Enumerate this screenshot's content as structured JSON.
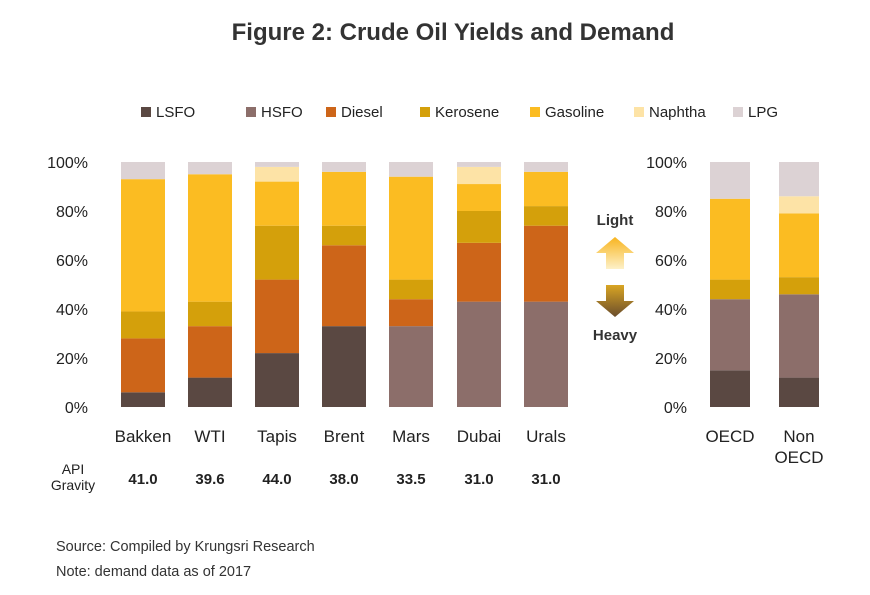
{
  "title": "Figure 2: Crude Oil Yields and Demand",
  "legend": [
    {
      "name": "LSFO",
      "color": "#5a4842"
    },
    {
      "name": "HSFO",
      "color": "#8c6e6a"
    },
    {
      "name": "Diesel",
      "color": "#cd6519"
    },
    {
      "name": "Kerosene",
      "color": "#d4a00b"
    },
    {
      "name": "Gasoline",
      "color": "#fbbc22"
    },
    {
      "name": "Naphtha",
      "color": "#fde3a6"
    },
    {
      "name": "LPG",
      "color": "#dcd2d4"
    }
  ],
  "chart_data": [
    {
      "type": "bar",
      "stacked": true,
      "categories": [
        "Bakken",
        "WTI",
        "Tapis",
        "Brent",
        "Mars",
        "Dubai",
        "Urals"
      ],
      "series": [
        {
          "name": "LSFO",
          "values": [
            6,
            12,
            22,
            33,
            0,
            0,
            0
          ]
        },
        {
          "name": "HSFO",
          "values": [
            0,
            0,
            0,
            0,
            33,
            43,
            43
          ]
        },
        {
          "name": "Diesel",
          "values": [
            22,
            21,
            30,
            33,
            11,
            24,
            31
          ]
        },
        {
          "name": "Kerosene",
          "values": [
            11,
            10,
            22,
            8,
            8,
            13,
            8
          ]
        },
        {
          "name": "Gasoline",
          "values": [
            54,
            52,
            18,
            22,
            42,
            11,
            14
          ]
        },
        {
          "name": "Naphtha",
          "values": [
            0,
            0,
            6,
            0,
            0,
            7,
            0
          ]
        },
        {
          "name": "LPG",
          "values": [
            7,
            5,
            2,
            4,
            6,
            2,
            4
          ]
        }
      ],
      "ylim": [
        0,
        100
      ],
      "yticks": [
        "0%",
        "20%",
        "40%",
        "60%",
        "80%",
        "100%"
      ],
      "api_gravity": {
        "label_line1": "API",
        "label_line2": "Gravity",
        "values": [
          "41.0",
          "39.6",
          "44.0",
          "38.0",
          "33.5",
          "31.0",
          "31.0"
        ]
      }
    },
    {
      "type": "bar",
      "stacked": true,
      "categories": [
        [
          "OECD"
        ],
        [
          "Non",
          "OECD"
        ]
      ],
      "series": [
        {
          "name": "LSFO",
          "values": [
            15,
            12
          ]
        },
        {
          "name": "HSFO",
          "values": [
            29,
            34
          ]
        },
        {
          "name": "Diesel",
          "values": [
            0,
            0
          ]
        },
        {
          "name": "Kerosene",
          "values": [
            8,
            7
          ]
        },
        {
          "name": "Gasoline",
          "values": [
            33,
            26
          ]
        },
        {
          "name": "Naphtha",
          "values": [
            0,
            7
          ]
        },
        {
          "name": "LPG",
          "values": [
            15,
            14
          ]
        }
      ],
      "ylim": [
        0,
        100
      ],
      "yticks": [
        "0%",
        "20%",
        "40%",
        "60%",
        "80%",
        "100%"
      ]
    }
  ],
  "indicator": {
    "light": "Light",
    "heavy": "Heavy"
  },
  "footer": {
    "source": "Source: Compiled by Krungsri Research",
    "note": "Note: demand data as of 2017"
  }
}
